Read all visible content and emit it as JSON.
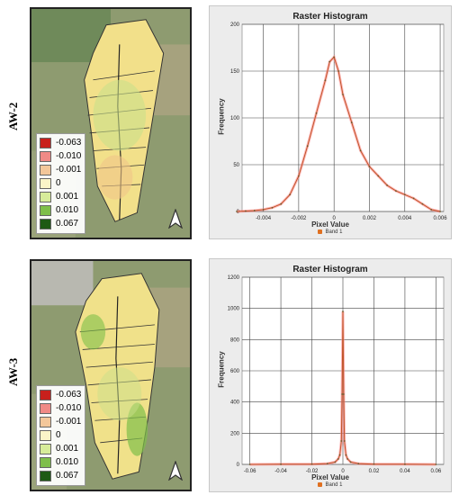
{
  "panels": [
    {
      "row_label": "AW-2",
      "legend": [
        {
          "label": "-0.063",
          "color": "#c8201c"
        },
        {
          "label": "-0.010",
          "color": "#f08a86"
        },
        {
          "label": "-0.001",
          "color": "#f3c79a"
        },
        {
          "label": "0",
          "color": "#fbf5c8"
        },
        {
          "label": "0.001",
          "color": "#d7ec9a"
        },
        {
          "label": "0.010",
          "color": "#7fbf4a"
        },
        {
          "label": "0.067",
          "color": "#1e5a14"
        }
      ],
      "north_icon": "north-arrow-icon",
      "histogram": {
        "title": "Raster Histogram",
        "xlabel": "Pixel Value",
        "ylabel": "Frequency",
        "legend": "Band 1"
      }
    },
    {
      "row_label": "AW-3",
      "legend": [
        {
          "label": "-0.063",
          "color": "#c8201c"
        },
        {
          "label": "-0.010",
          "color": "#f08a86"
        },
        {
          "label": "-0.001",
          "color": "#f3c79a"
        },
        {
          "label": "0",
          "color": "#fbf5c8"
        },
        {
          "label": "0.001",
          "color": "#d7ec9a"
        },
        {
          "label": "0.010",
          "color": "#7fbf4a"
        },
        {
          "label": "0.067",
          "color": "#1e5a14"
        }
      ],
      "north_icon": "north-arrow-icon",
      "histogram": {
        "title": "Raster Histogram",
        "xlabel": "Pixel Value",
        "ylabel": "Frequency",
        "legend": "Band 1"
      }
    }
  ],
  "chart_data": [
    {
      "type": "line",
      "title": "Raster Histogram",
      "xlabel": "Pixel Value",
      "ylabel": "Frequency",
      "series": [
        {
          "name": "Band 1",
          "color": "#c0552a",
          "x": [
            -0.0055,
            -0.005,
            -0.0045,
            -0.004,
            -0.0035,
            -0.003,
            -0.0025,
            -0.002,
            -0.0015,
            -0.001,
            -0.0005,
            -0.00025,
            0,
            0.00025,
            0.0005,
            0.001,
            0.0015,
            0.002,
            0.0025,
            0.003,
            0.0035,
            0.004,
            0.0045,
            0.005,
            0.0055,
            0.006
          ],
          "y": [
            0,
            0.5,
            1,
            2,
            4,
            8,
            18,
            38,
            70,
            105,
            140,
            160,
            165,
            150,
            125,
            95,
            65,
            48,
            38,
            28,
            22,
            18,
            14,
            8,
            2,
            0
          ]
        }
      ],
      "xlim": [
        -0.0052,
        0.0062
      ],
      "ylim": [
        0,
        200
      ],
      "xticks": [
        -0.004,
        -0.002,
        0,
        0.002,
        0.004,
        0.006
      ],
      "xtick_labels": [
        "-0.004",
        "-0.002",
        "0",
        "0.002",
        "0.004",
        "0.006"
      ],
      "yticks": [
        0,
        50,
        100,
        150,
        200
      ],
      "grid": true,
      "legend_position": "bottom"
    },
    {
      "type": "line",
      "title": "Raster Histogram",
      "xlabel": "Pixel Value",
      "ylabel": "Frequency",
      "series": [
        {
          "name": "Band 1",
          "color": "#c0552a",
          "x": [
            -0.06,
            -0.04,
            -0.02,
            -0.01,
            -0.005,
            -0.003,
            -0.002,
            -0.001,
            -0.0005,
            0,
            0.0005,
            0.001,
            0.002,
            0.003,
            0.005,
            0.01,
            0.02,
            0.04,
            0.06
          ],
          "y": [
            0,
            1,
            2,
            5,
            15,
            35,
            60,
            150,
            450,
            980,
            450,
            150,
            60,
            35,
            15,
            5,
            2,
            1,
            0
          ]
        }
      ],
      "xlim": [
        -0.065,
        0.065
      ],
      "ylim": [
        0,
        1200
      ],
      "xticks": [
        -0.06,
        -0.04,
        -0.02,
        0,
        0.02,
        0.04,
        0.06
      ],
      "xtick_labels": [
        "-0.06",
        "-0.04",
        "-0.02",
        "0",
        "0.02",
        "0.04",
        "0.06"
      ],
      "yticks": [
        0,
        200,
        400,
        600,
        800,
        1000,
        1200
      ],
      "grid": true,
      "legend_position": "bottom"
    }
  ]
}
